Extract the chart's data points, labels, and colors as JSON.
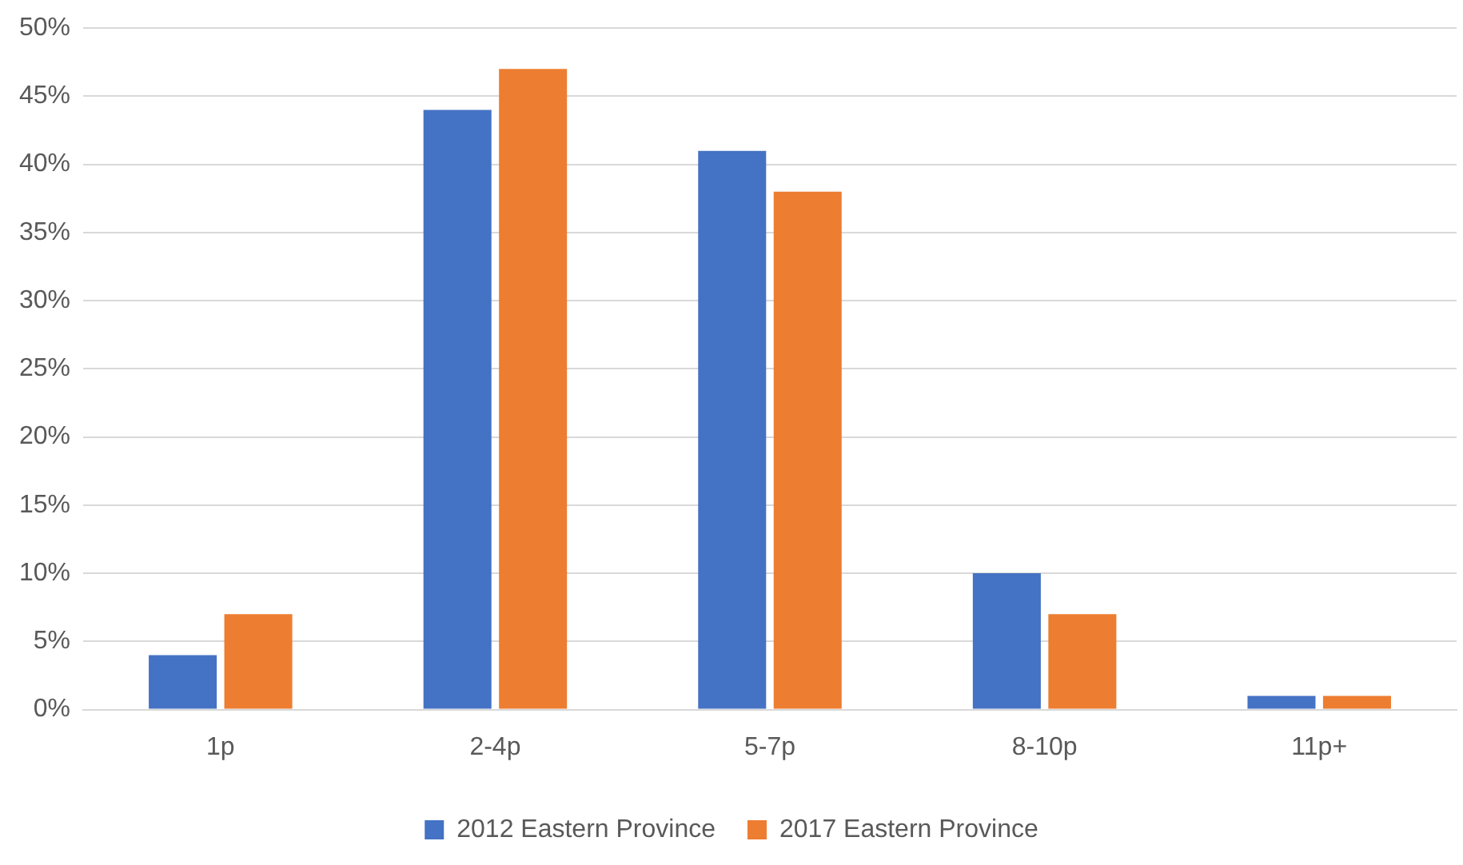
{
  "chart_data": {
    "type": "bar",
    "categories": [
      "1p",
      "2-4p",
      "5-7p",
      "8-10p",
      "11p+"
    ],
    "series": [
      {
        "name": "2012 Eastern Province",
        "color": "#4472c4",
        "values": [
          4,
          44,
          41,
          10,
          1
        ]
      },
      {
        "name": "2017 Eastern Province",
        "color": "#ed7d31",
        "values": [
          7,
          47,
          38,
          7,
          1
        ]
      }
    ],
    "ylim": [
      0,
      50
    ],
    "yticks": [
      {
        "value": 0,
        "label": "0%"
      },
      {
        "value": 5,
        "label": "5%"
      },
      {
        "value": 10,
        "label": "10%"
      },
      {
        "value": 15,
        "label": "15%"
      },
      {
        "value": 20,
        "label": "20%"
      },
      {
        "value": 25,
        "label": "25%"
      },
      {
        "value": 30,
        "label": "30%"
      },
      {
        "value": 35,
        "label": "35%"
      },
      {
        "value": 40,
        "label": "40%"
      },
      {
        "value": 45,
        "label": "45%"
      },
      {
        "value": 50,
        "label": "50%"
      }
    ],
    "grid": "y",
    "legend": "bottom"
  }
}
